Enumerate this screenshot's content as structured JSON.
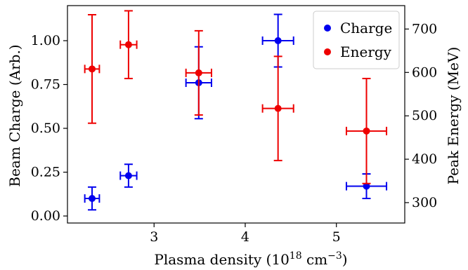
{
  "chart_data": {
    "type": "scatter",
    "xlabel": {
      "main": "Plasma density (10",
      "sup1": "18",
      "mid": " cm",
      "sup2": "−3",
      "end": ")"
    },
    "ylabel": "Beam Charge (Arb.)",
    "y2label": "Peak Energy (MeV)",
    "xlim": [
      2.05,
      5.75
    ],
    "ylim": [
      -0.04,
      1.2
    ],
    "y2lim": [
      253,
      754
    ],
    "x_ticks": [
      3,
      4,
      5
    ],
    "y_ticks": [
      0.0,
      0.25,
      0.5,
      0.75,
      1.0
    ],
    "y_tick_labels": [
      "0.00",
      "0.25",
      "0.50",
      "0.75",
      "1.00"
    ],
    "y2_ticks": [
      300,
      400,
      500,
      600,
      700
    ],
    "grid": false,
    "legend_position": "top-right",
    "series": [
      {
        "name": "Charge",
        "axis": "left",
        "color": "#0000ee",
        "points": [
          {
            "x": 2.32,
            "y": 0.1,
            "xerr": 0.08,
            "yerr": 0.065
          },
          {
            "x": 2.72,
            "y": 0.23,
            "xerr": 0.09,
            "yerr": 0.065
          },
          {
            "x": 3.49,
            "y": 0.76,
            "xerr": 0.14,
            "yerr": 0.205
          },
          {
            "x": 4.36,
            "y": 1.0,
            "xerr": 0.17,
            "yerr": 0.15
          },
          {
            "x": 5.33,
            "y": 0.17,
            "xerr": 0.22,
            "yerr": 0.07
          }
        ]
      },
      {
        "name": "Energy",
        "axis": "right",
        "color": "#ee0000",
        "points": [
          {
            "x": 2.32,
            "y": 608,
            "xerr": 0.08,
            "yerr": 125
          },
          {
            "x": 2.72,
            "y": 664,
            "xerr": 0.09,
            "yerr": 78
          },
          {
            "x": 3.49,
            "y": 599,
            "xerr": 0.14,
            "yerr": 97
          },
          {
            "x": 4.36,
            "y": 517,
            "xerr": 0.17,
            "yerr": 120
          },
          {
            "x": 5.33,
            "y": 465,
            "xerr": 0.22,
            "yerr": 121
          }
        ]
      }
    ]
  }
}
